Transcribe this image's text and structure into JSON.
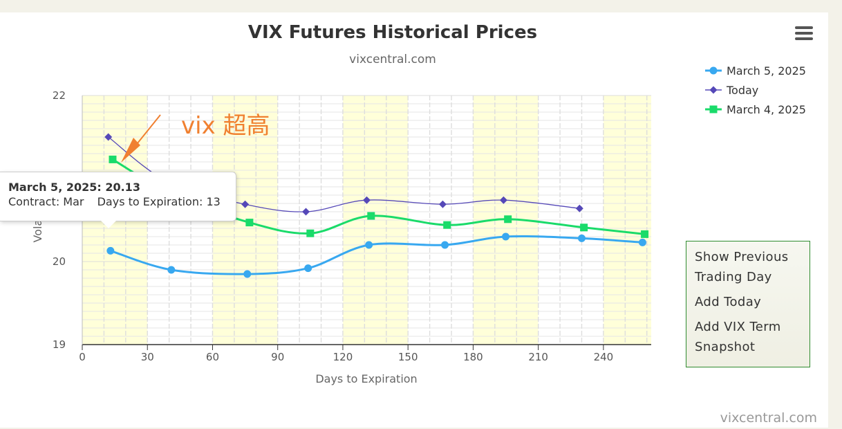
{
  "chart_data": {
    "type": "line",
    "title": "VIX Futures Historical Prices",
    "subtitle": "vixcentral.com",
    "xlabel": "Days to Expiration",
    "ylabel": "Volatility",
    "xlim": [
      0,
      262
    ],
    "ylim": [
      19,
      22
    ],
    "x_ticks": [
      "0",
      "30",
      "60",
      "90",
      "120",
      "150",
      "180",
      "210",
      "240"
    ],
    "y_ticks": [
      "19",
      "20",
      "21",
      "22"
    ],
    "grid": true,
    "legend_position": "top-right",
    "series": [
      {
        "name": "March 5, 2025",
        "color": "#38a8f0",
        "marker": "circle",
        "points": [
          [
            13,
            20.13
          ],
          [
            41,
            19.9
          ],
          [
            76,
            19.85
          ],
          [
            104,
            19.92
          ],
          [
            132,
            20.2
          ],
          [
            167,
            20.2
          ],
          [
            195,
            20.3
          ],
          [
            230,
            20.28
          ],
          [
            258,
            20.23
          ]
        ]
      },
      {
        "name": "Today",
        "color": "#5548b8",
        "marker": "diamond",
        "points": [
          [
            12,
            21.5
          ],
          [
            40,
            20.95
          ],
          [
            75,
            20.69
          ],
          [
            103,
            20.6
          ],
          [
            131,
            20.74
          ],
          [
            166,
            20.69
          ],
          [
            194,
            20.74
          ],
          [
            229,
            20.64
          ]
        ]
      },
      {
        "name": "March 4, 2025",
        "color": "#1adb6a",
        "marker": "square",
        "points": [
          [
            14,
            21.23
          ],
          [
            42,
            20.8
          ],
          [
            77,
            20.47
          ],
          [
            105,
            20.34
          ],
          [
            133,
            20.55
          ],
          [
            168,
            20.44
          ],
          [
            196,
            20.51
          ],
          [
            231,
            20.41
          ],
          [
            259,
            20.33
          ]
        ]
      }
    ],
    "annotation": "vix 超高"
  },
  "legend": {
    "items": [
      "March 5, 2025",
      "Today",
      "March 4, 2025"
    ]
  },
  "tooltip": {
    "title": "March 5, 2025: 20.13",
    "contract": "Contract: Mar",
    "days": "Days to Expiration: 13"
  },
  "menu": {
    "items": [
      "Show Previous Trading Day",
      "Add Today",
      "Add VIX Term Snapshot"
    ]
  },
  "credit": "vixcentral.com",
  "icons": {
    "menu": "hamburger-menu-icon"
  }
}
